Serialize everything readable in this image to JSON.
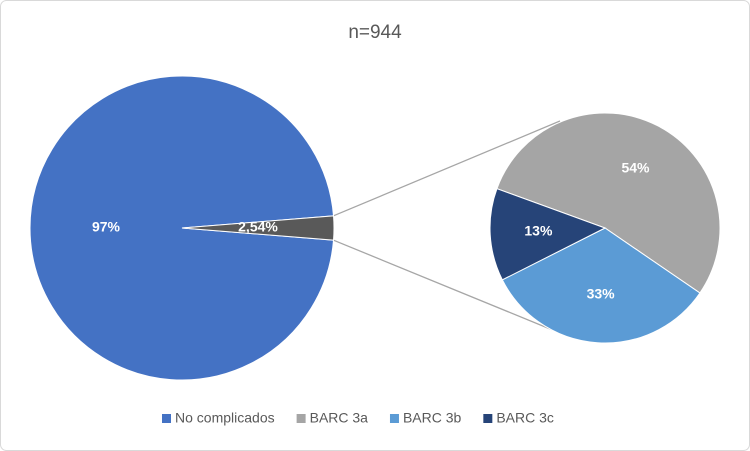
{
  "chart_data": {
    "type": "pie-of-pie",
    "title": "n=944",
    "main": {
      "categories": [
        "No complicados",
        null
      ],
      "values": [
        97,
        2.54
      ],
      "value_labels": [
        "97%",
        "2,54%"
      ],
      "colors": [
        "#4472c4",
        "#595959"
      ]
    },
    "secondary": {
      "categories": [
        "BARC 3a",
        "BARC 3b",
        "BARC 3c"
      ],
      "values": [
        54,
        33,
        13
      ],
      "value_labels": [
        "54%",
        "33%",
        "13%"
      ],
      "colors": [
        "#a5a5a5",
        "#5b9bd5",
        "#264478"
      ]
    }
  }
}
